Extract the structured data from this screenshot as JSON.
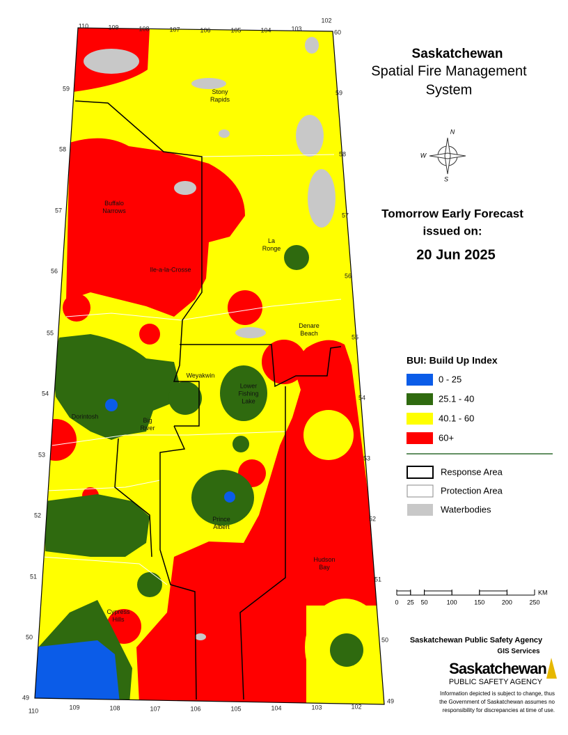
{
  "header": {
    "title": "Saskatchewan",
    "subtitle_lines": [
      "Spatial Fire Management",
      "System"
    ]
  },
  "forecast": {
    "lines": [
      "Tomorrow Early Forecast",
      "issued on:"
    ],
    "date": "20 Jun 2025"
  },
  "compass": [
    "N",
    "W",
    "S"
  ],
  "legend": {
    "title": "BUI: Build Up Index",
    "items": [
      {
        "label": "0 - 25",
        "color": "#0b5ce8"
      },
      {
        "label": "25.1 - 40",
        "color": "#2f6a0f"
      },
      {
        "label": "40.1 - 60",
        "color": "#ffff00"
      },
      {
        "label": "60+",
        "color": "#ff0000"
      }
    ]
  },
  "layers": {
    "items": [
      {
        "label": "Response Area"
      },
      {
        "label": "Protection Area"
      },
      {
        "label": "Waterbodies"
      }
    ]
  },
  "scale": {
    "ticks": [
      0,
      25,
      50,
      100,
      150,
      200,
      250
    ],
    "unit": "KM"
  },
  "latitudes_left": [
    59,
    58,
    57,
    56,
    55,
    54,
    53,
    52,
    51,
    50,
    49
  ],
  "latitudes_right": [
    60,
    59,
    58,
    57,
    56,
    55,
    54,
    53,
    52,
    51,
    50,
    49
  ],
  "longitudes_top": [
    110,
    109,
    108,
    107,
    106,
    105,
    104,
    103,
    102
  ],
  "longitudes_bottom": [
    110,
    109,
    108,
    107,
    106,
    105,
    104,
    103,
    102
  ],
  "places": [
    {
      "lines": [
        "Stony",
        "Rapids"
      ]
    },
    {
      "lines": [
        "Buffalo",
        "Narrows"
      ]
    },
    {
      "lines": [
        "La",
        "Ronge"
      ]
    },
    {
      "lines": [
        "Ile-a-la-Crosse"
      ]
    },
    {
      "lines": [
        "Denare",
        "Beach"
      ]
    },
    {
      "lines": [
        "Weyakwin"
      ]
    },
    {
      "lines": [
        "Lower",
        "Fishing",
        "Lake"
      ]
    },
    {
      "lines": [
        "Dorintosh"
      ]
    },
    {
      "lines": [
        "Big",
        "River"
      ]
    },
    {
      "lines": [
        "Prince",
        "Albert"
      ]
    },
    {
      "lines": [
        "Hudson",
        "Bay"
      ]
    },
    {
      "lines": [
        "Cypress",
        "Hills"
      ]
    }
  ],
  "agency": {
    "name": "Saskatchewan Public Safety Agency",
    "unit": "GIS  Services",
    "logo": {
      "main": "Saskatchewan",
      "sub": "PUBLIC SAFETY AGENCY"
    },
    "disclaimer": [
      "Information depicted is subject to change, thus",
      "the Government of Saskatchewan assumes no",
      "responsibility for discrepancies at time of use."
    ]
  }
}
